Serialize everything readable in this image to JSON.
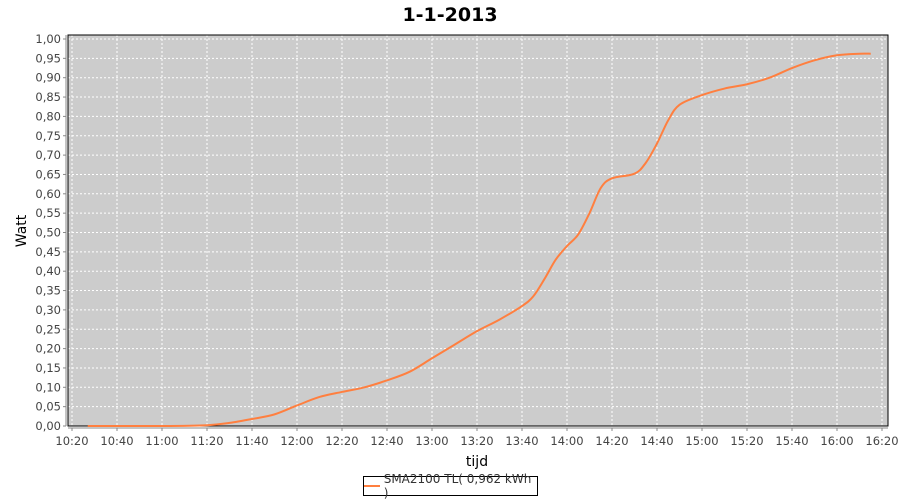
{
  "chart_data": {
    "type": "line",
    "title": "1-1-2013",
    "xlabel": "tijd",
    "ylabel": "Watt",
    "xlim": [
      "10:20",
      "16:20"
    ],
    "ylim": [
      0,
      1.0
    ],
    "grid": true,
    "legend_position": "bottom",
    "x_ticks": [
      "10:20",
      "10:40",
      "11:00",
      "11:20",
      "11:40",
      "12:00",
      "12:20",
      "12:40",
      "13:00",
      "13:20",
      "13:40",
      "14:00",
      "14:20",
      "14:40",
      "15:00",
      "15:20",
      "15:40",
      "16:00",
      "16:20"
    ],
    "y_ticks": [
      "0,00",
      "0,05",
      "0,10",
      "0,15",
      "0,20",
      "0,25",
      "0,30",
      "0,35",
      "0,40",
      "0,45",
      "0,50",
      "0,55",
      "0,60",
      "0,65",
      "0,70",
      "0,75",
      "0,80",
      "0,85",
      "0,90",
      "0,95",
      "1,00"
    ],
    "colors": {
      "plot_background": "#cccccc",
      "grid": "#ffffff",
      "series": "#ff7f3f"
    },
    "series": [
      {
        "name": "SMA2100 TL( 0,962 kWh )",
        "x": [
          "10:27",
          "11:00",
          "11:20",
          "11:30",
          "11:40",
          "11:50",
          "12:00",
          "12:10",
          "12:20",
          "12:30",
          "12:40",
          "12:50",
          "13:00",
          "13:10",
          "13:20",
          "13:30",
          "13:40",
          "13:45",
          "13:50",
          "13:55",
          "14:00",
          "14:05",
          "14:10",
          "14:15",
          "14:20",
          "14:30",
          "14:35",
          "14:40",
          "14:45",
          "14:50",
          "15:00",
          "15:10",
          "15:20",
          "15:30",
          "15:40",
          "15:50",
          "16:00",
          "16:10",
          "16:15"
        ],
        "values": [
          0,
          0,
          0.002,
          0.008,
          0.018,
          0.03,
          0.053,
          0.075,
          0.088,
          0.1,
          0.118,
          0.14,
          0.175,
          0.21,
          0.245,
          0.275,
          0.31,
          0.335,
          0.38,
          0.43,
          0.465,
          0.495,
          0.55,
          0.615,
          0.64,
          0.652,
          0.68,
          0.73,
          0.79,
          0.83,
          0.855,
          0.872,
          0.883,
          0.9,
          0.925,
          0.945,
          0.958,
          0.962,
          0.962
        ]
      }
    ]
  }
}
